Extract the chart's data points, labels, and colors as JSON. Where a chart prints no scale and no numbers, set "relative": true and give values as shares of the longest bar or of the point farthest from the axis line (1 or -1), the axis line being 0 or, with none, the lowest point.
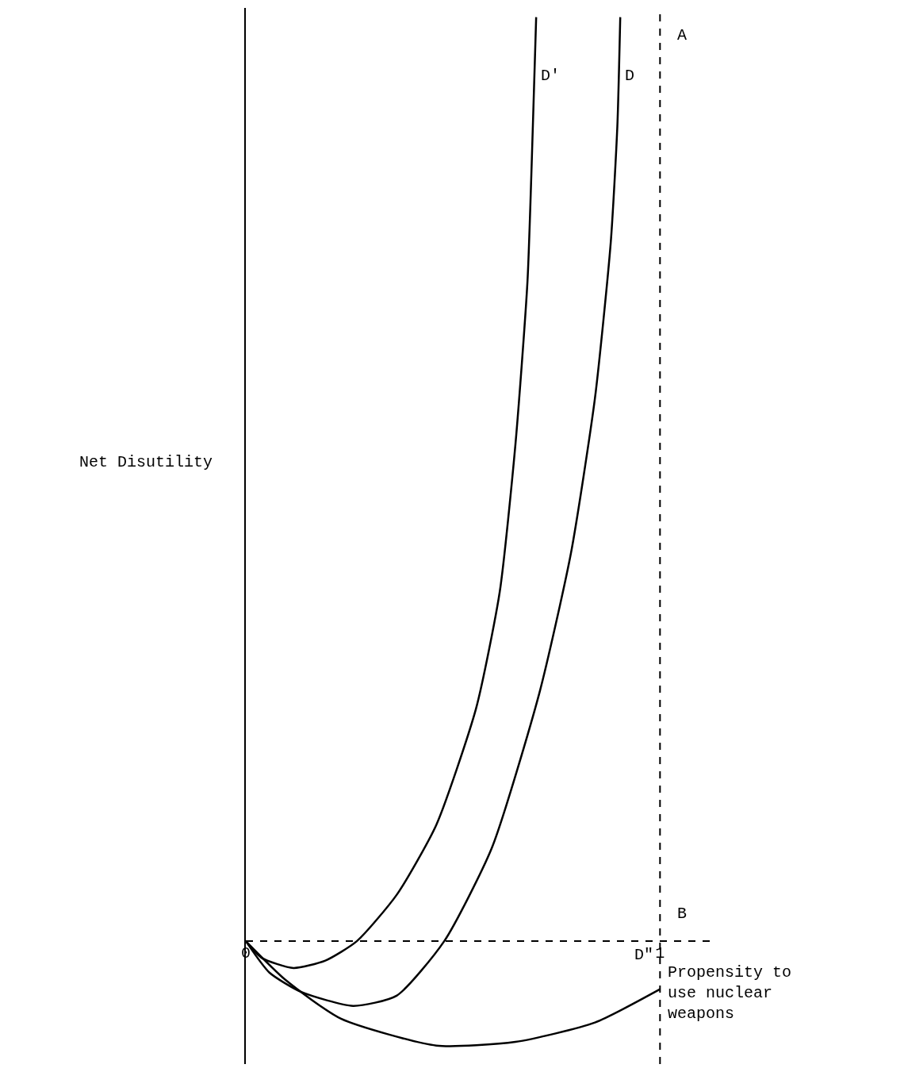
{
  "chart_data": {
    "type": "line",
    "relative": true,
    "xlabel": "Propensity to use nuclear weapons",
    "ylabel": "Net Disutility",
    "xlim": [
      0,
      1.12
    ],
    "xticks": [
      0,
      1
    ],
    "grid": false,
    "legend": false,
    "line_style": "solid",
    "series": [
      {
        "name": "D'",
        "color": "#000000",
        "x": [
          0,
          0.038,
          0.115,
          0.192,
          0.268,
          0.364,
          0.46,
          0.556,
          0.613,
          0.651,
          0.68,
          0.693,
          0.701
        ],
        "values": [
          0,
          -0.018,
          -0.029,
          -0.021,
          0,
          0.05,
          0.126,
          0.252,
          0.378,
          0.538,
          0.714,
          0.882,
          1.0
        ]
      },
      {
        "name": "D",
        "color": "#000000",
        "x": [
          0,
          0.057,
          0.134,
          0.259,
          0.364,
          0.479,
          0.594,
          0.709,
          0.785,
          0.843,
          0.881,
          0.897,
          0.904
        ],
        "values": [
          0,
          -0.034,
          -0.055,
          -0.07,
          -0.059,
          0,
          0.101,
          0.269,
          0.42,
          0.588,
          0.756,
          0.882,
          1.0
        ]
      },
      {
        "name": "D\"",
        "color": "#000000",
        "x": [
          0,
          0.096,
          0.23,
          0.46,
          0.651,
          0.843,
          1.0
        ],
        "values": [
          0,
          -0.042,
          -0.084,
          -0.113,
          -0.109,
          -0.088,
          -0.052
        ]
      }
    ],
    "ref_lines": [
      {
        "axis": "x",
        "value": 1,
        "line_style": "dashed",
        "color": "#000000"
      },
      {
        "axis": "y",
        "value": 0,
        "line_style": "dashed",
        "color": "#000000"
      }
    ],
    "annotations": [
      {
        "text": "A",
        "x": 1,
        "y": 0.98
      },
      {
        "text": "B",
        "x": 1,
        "y": 0.03
      }
    ]
  }
}
